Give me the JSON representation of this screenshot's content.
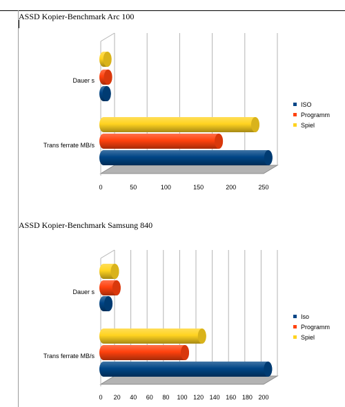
{
  "chart_data": [
    {
      "type": "bar",
      "orientation": "horizontal",
      "style": "3d-cylinder",
      "title": "ASSD Kopier-Benchmark Arc 100",
      "categories": [
        "Dauer s",
        "Trans ferrate MB/s"
      ],
      "series": [
        {
          "name": "ISO",
          "color": "#004586",
          "values": [
            5,
            253
          ]
        },
        {
          "name": "Programm",
          "color": "#ff420e",
          "values": [
            7,
            177
          ]
        },
        {
          "name": "Spiel",
          "color": "#ffd320",
          "values": [
            6,
            233
          ]
        }
      ],
      "xlim": [
        0,
        250
      ],
      "xticks": [
        "0",
        "50",
        "100",
        "150",
        "200",
        "250"
      ],
      "grid": true,
      "legend": "right"
    },
    {
      "type": "bar",
      "orientation": "horizontal",
      "style": "3d-cylinder",
      "title": "ASSD Kopier-Benchmark Samsung 840",
      "categories": [
        "Dauer s",
        "Trans ferrate MB/s"
      ],
      "series": [
        {
          "name": "Iso",
          "color": "#004586",
          "values": [
            6,
            202
          ]
        },
        {
          "name": "Programm",
          "color": "#ff420e",
          "values": [
            16,
            100
          ]
        },
        {
          "name": "Spiel",
          "color": "#ffd320",
          "values": [
            14,
            121
          ]
        }
      ],
      "xlim": [
        0,
        200
      ],
      "xticks": [
        "0",
        "20",
        "40",
        "60",
        "80",
        "100",
        "120",
        "140",
        "160",
        "180",
        "200"
      ],
      "grid": true,
      "legend": "right"
    }
  ]
}
